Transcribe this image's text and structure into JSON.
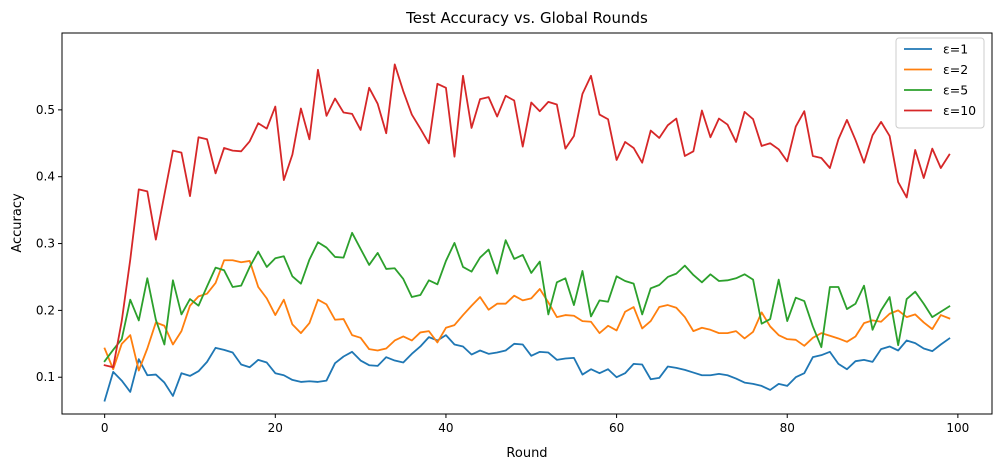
{
  "chart_data": {
    "type": "line",
    "title": "Test Accuracy vs. Global Rounds",
    "xlabel": "Round",
    "ylabel": "Accuracy",
    "xlim": [
      -5,
      104
    ],
    "ylim": [
      0.045,
      0.615
    ],
    "xticks": [
      0,
      20,
      40,
      60,
      80,
      100
    ],
    "yticks": [
      0.1,
      0.2,
      0.3,
      0.4,
      0.5
    ],
    "grid": false,
    "legend_position": "top-right",
    "x": [
      0,
      1,
      2,
      3,
      4,
      5,
      6,
      7,
      8,
      9,
      10,
      11,
      12,
      13,
      14,
      15,
      16,
      17,
      18,
      19,
      20,
      21,
      22,
      23,
      24,
      25,
      26,
      27,
      28,
      29,
      30,
      31,
      32,
      33,
      34,
      35,
      36,
      37,
      38,
      39,
      40,
      41,
      42,
      43,
      44,
      45,
      46,
      47,
      48,
      49,
      50,
      51,
      52,
      53,
      54,
      55,
      56,
      57,
      58,
      59,
      60,
      61,
      62,
      63,
      64,
      65,
      66,
      67,
      68,
      69,
      70,
      71,
      72,
      73,
      74,
      75,
      76,
      77,
      78,
      79,
      80,
      81,
      82,
      83,
      84,
      85,
      86,
      87,
      88,
      89,
      90,
      91,
      92,
      93,
      94,
      95,
      96,
      97,
      98,
      99
    ],
    "series": [
      {
        "name": "ε=1",
        "color": "#1f77b4",
        "values": [
          0.065,
          0.108,
          0.095,
          0.078,
          0.127,
          0.103,
          0.104,
          0.092,
          0.072,
          0.106,
          0.102,
          0.109,
          0.123,
          0.144,
          0.141,
          0.137,
          0.119,
          0.115,
          0.126,
          0.122,
          0.106,
          0.103,
          0.096,
          0.093,
          0.094,
          0.093,
          0.095,
          0.121,
          0.131,
          0.138,
          0.125,
          0.118,
          0.117,
          0.13,
          0.125,
          0.122,
          0.135,
          0.146,
          0.16,
          0.155,
          0.163,
          0.149,
          0.146,
          0.134,
          0.14,
          0.135,
          0.137,
          0.14,
          0.15,
          0.149,
          0.132,
          0.138,
          0.137,
          0.126,
          0.128,
          0.129,
          0.104,
          0.112,
          0.106,
          0.112,
          0.1,
          0.106,
          0.12,
          0.119,
          0.097,
          0.099,
          0.116,
          0.114,
          0.111,
          0.107,
          0.103,
          0.103,
          0.105,
          0.103,
          0.098,
          0.092,
          0.09,
          0.087,
          0.081,
          0.09,
          0.087,
          0.1,
          0.106,
          0.13,
          0.133,
          0.138,
          0.12,
          0.112,
          0.124,
          0.126,
          0.123,
          0.142,
          0.146,
          0.14,
          0.155,
          0.151,
          0.143,
          0.139,
          0.149,
          0.158
        ]
      },
      {
        "name": "ε=2",
        "color": "#ff7f0e",
        "values": [
          0.143,
          0.112,
          0.15,
          0.163,
          0.11,
          0.143,
          0.182,
          0.177,
          0.149,
          0.169,
          0.207,
          0.221,
          0.225,
          0.241,
          0.275,
          0.275,
          0.272,
          0.274,
          0.235,
          0.218,
          0.193,
          0.216,
          0.179,
          0.166,
          0.181,
          0.216,
          0.209,
          0.186,
          0.187,
          0.163,
          0.159,
          0.142,
          0.14,
          0.143,
          0.155,
          0.161,
          0.155,
          0.167,
          0.169,
          0.152,
          0.174,
          0.178,
          0.193,
          0.207,
          0.22,
          0.201,
          0.21,
          0.21,
          0.222,
          0.215,
          0.218,
          0.232,
          0.212,
          0.19,
          0.193,
          0.192,
          0.184,
          0.183,
          0.166,
          0.177,
          0.17,
          0.198,
          0.205,
          0.173,
          0.184,
          0.205,
          0.208,
          0.204,
          0.19,
          0.169,
          0.174,
          0.171,
          0.166,
          0.166,
          0.169,
          0.158,
          0.168,
          0.197,
          0.176,
          0.163,
          0.157,
          0.156,
          0.147,
          0.159,
          0.166,
          0.162,
          0.158,
          0.153,
          0.161,
          0.181,
          0.185,
          0.183,
          0.195,
          0.2,
          0.19,
          0.194,
          0.182,
          0.172,
          0.193,
          0.188
        ]
      },
      {
        "name": "ε=5",
        "color": "#2ca02c",
        "values": [
          0.124,
          0.141,
          0.157,
          0.216,
          0.185,
          0.248,
          0.186,
          0.149,
          0.245,
          0.194,
          0.217,
          0.207,
          0.236,
          0.264,
          0.26,
          0.235,
          0.237,
          0.265,
          0.288,
          0.265,
          0.278,
          0.281,
          0.251,
          0.24,
          0.276,
          0.302,
          0.294,
          0.28,
          0.279,
          0.316,
          0.292,
          0.268,
          0.286,
          0.262,
          0.263,
          0.247,
          0.22,
          0.223,
          0.245,
          0.239,
          0.274,
          0.301,
          0.265,
          0.258,
          0.279,
          0.291,
          0.255,
          0.305,
          0.277,
          0.283,
          0.256,
          0.273,
          0.194,
          0.242,
          0.248,
          0.208,
          0.259,
          0.191,
          0.215,
          0.213,
          0.251,
          0.244,
          0.24,
          0.194,
          0.233,
          0.238,
          0.25,
          0.255,
          0.267,
          0.253,
          0.242,
          0.254,
          0.244,
          0.245,
          0.248,
          0.254,
          0.246,
          0.18,
          0.187,
          0.246,
          0.184,
          0.219,
          0.214,
          0.176,
          0.145,
          0.235,
          0.235,
          0.202,
          0.21,
          0.237,
          0.171,
          0.2,
          0.22,
          0.148,
          0.217,
          0.228,
          0.21,
          0.19,
          0.198,
          0.206
        ]
      },
      {
        "name": "ε=10",
        "color": "#d62728",
        "values": [
          0.118,
          0.115,
          0.184,
          0.276,
          0.381,
          0.378,
          0.306,
          0.373,
          0.439,
          0.436,
          0.371,
          0.459,
          0.456,
          0.405,
          0.443,
          0.439,
          0.438,
          0.453,
          0.48,
          0.472,
          0.505,
          0.395,
          0.433,
          0.502,
          0.456,
          0.56,
          0.491,
          0.517,
          0.496,
          0.494,
          0.47,
          0.533,
          0.509,
          0.465,
          0.568,
          0.528,
          0.493,
          0.472,
          0.45,
          0.539,
          0.533,
          0.43,
          0.551,
          0.473,
          0.516,
          0.519,
          0.49,
          0.521,
          0.514,
          0.445,
          0.511,
          0.498,
          0.512,
          0.508,
          0.442,
          0.461,
          0.524,
          0.551,
          0.493,
          0.486,
          0.425,
          0.452,
          0.443,
          0.421,
          0.469,
          0.458,
          0.477,
          0.487,
          0.431,
          0.438,
          0.499,
          0.459,
          0.487,
          0.478,
          0.452,
          0.497,
          0.486,
          0.446,
          0.45,
          0.441,
          0.423,
          0.475,
          0.498,
          0.431,
          0.428,
          0.413,
          0.456,
          0.485,
          0.455,
          0.421,
          0.462,
          0.482,
          0.461,
          0.392,
          0.369,
          0.44,
          0.398,
          0.442,
          0.413,
          0.433
        ]
      }
    ]
  }
}
